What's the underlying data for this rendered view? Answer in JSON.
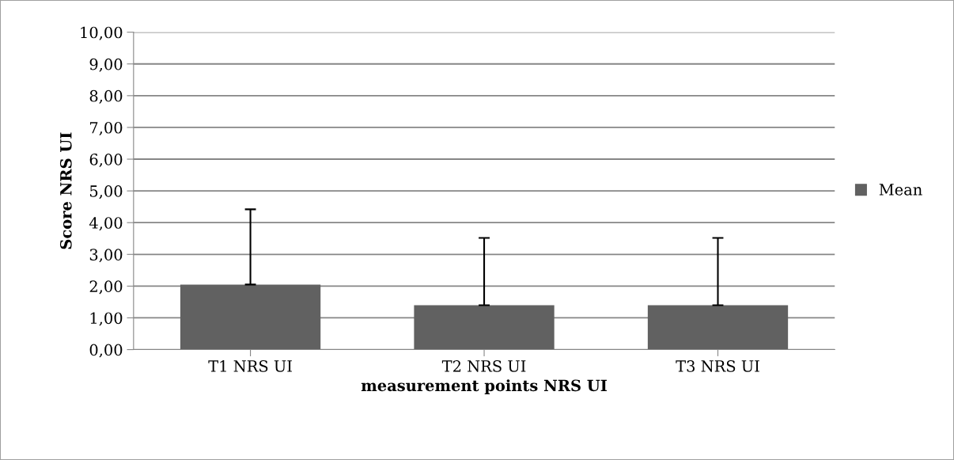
{
  "chart_data": {
    "type": "bar",
    "xlabel": "measurement points NRS UI",
    "ylabel": "Score NRS UI",
    "categories": [
      "T1 NRS UI",
      "T2 NRS UI",
      "T3 NRS UI"
    ],
    "series": [
      {
        "name": "Mean",
        "color": "#616161",
        "values": [
          2.05,
          1.4,
          1.4
        ],
        "errors": [
          [
            2.05,
            4.42
          ],
          [
            1.4,
            3.52
          ],
          [
            1.4,
            3.52
          ]
        ]
      }
    ],
    "ylim": [
      0,
      10
    ],
    "yticks": [
      {
        "value": 0,
        "label": "0,00"
      },
      {
        "value": 1,
        "label": "1,00"
      },
      {
        "value": 2,
        "label": "2,00"
      },
      {
        "value": 3,
        "label": "3,00"
      },
      {
        "value": 4,
        "label": "4,00"
      },
      {
        "value": 5,
        "label": "5,00"
      },
      {
        "value": 6,
        "label": "6,00"
      },
      {
        "value": 7,
        "label": "7,00"
      },
      {
        "value": 8,
        "label": "8,00"
      },
      {
        "value": 9,
        "label": "9,00"
      },
      {
        "value": 10,
        "label": "10,00"
      }
    ],
    "grid": "y",
    "legend": "right"
  }
}
